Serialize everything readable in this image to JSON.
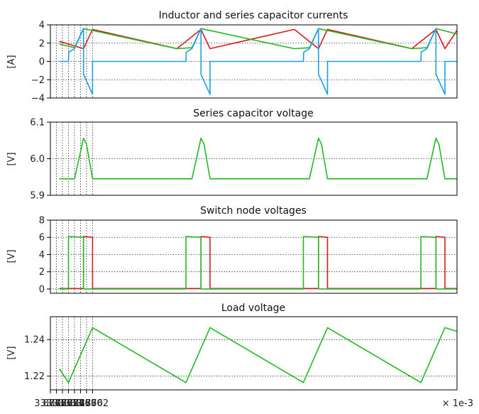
{
  "chart_data": [
    {
      "type": "line",
      "title": "Inductor and series capacitor currents",
      "ylabel": "[A]",
      "ylim": [
        -4,
        4
      ],
      "yticks": [
        -4,
        -2,
        0,
        2,
        4
      ],
      "ytick_labels": [
        "−4",
        "−2",
        "0",
        "2",
        "4"
      ],
      "grid": true,
      "series": [
        {
          "color": "#dd1a1a",
          "x": [
            0.0003,
            0.0011,
            0.0014,
            0.0042,
            0.005,
            0.0053,
            0.0081,
            0.0089,
            0.0092,
            0.012,
            0.0128,
            0.0131,
            0.0135
          ],
          "y": [
            2.2,
            1.4,
            3.5,
            1.4,
            3.5,
            1.4,
            3.5,
            1.4,
            3.5,
            1.4,
            3.5,
            1.4,
            3.4
          ]
        },
        {
          "color": "#22b922",
          "x": [
            0.0003,
            0.0008,
            0.0011,
            0.0039,
            0.0042,
            0.0047,
            0.005,
            0.0078,
            0.0081,
            0.0086,
            0.0089,
            0.0117,
            0.012,
            0.0125,
            0.0128,
            0.0135
          ],
          "y": [
            1.9,
            1.5,
            3.6,
            1.6,
            1.4,
            1.5,
            3.6,
            1.6,
            1.4,
            1.5,
            3.6,
            1.6,
            1.4,
            1.5,
            3.6,
            3.0
          ]
        },
        {
          "color": "#1aa0e6",
          "x": [
            0.0003,
            0.0006,
            0.00061,
            0.0008,
            0.0011,
            0.0011,
            0.0014,
            0.0014,
            0.0045,
            0.00451,
            0.0047,
            0.005,
            0.005,
            0.0053,
            0.0053,
            0.0084,
            0.00841,
            0.0086,
            0.0089,
            0.0089,
            0.0092,
            0.0092,
            0.0123,
            0.01231,
            0.0125,
            0.0128,
            0.0128,
            0.0131,
            0.0131,
            0.0135
          ],
          "y": [
            0.0,
            0.0,
            1.0,
            1.4,
            3.6,
            -1.4,
            -3.6,
            0.0,
            0.0,
            1.0,
            1.4,
            3.6,
            -1.4,
            -3.6,
            0.0,
            0.0,
            1.0,
            1.4,
            3.6,
            -1.4,
            -3.6,
            0.0,
            0.0,
            1.0,
            1.4,
            3.6,
            -1.4,
            -3.6,
            0.0,
            0.0
          ]
        }
      ]
    },
    {
      "type": "line",
      "title": "Series capacitor voltage",
      "ylabel": "[V]",
      "ylim": [
        5.9,
        6.1
      ],
      "yticks": [
        5.9,
        6.0,
        6.1
      ],
      "ytick_labels": [
        "5.9",
        "6.0",
        "6.1"
      ],
      "grid": true,
      "series": [
        {
          "color": "#22b922",
          "x": [
            0.0003,
            0.0008,
            0.0011,
            0.0012,
            0.0014,
            0.0047,
            0.005,
            0.0051,
            0.0053,
            0.0086,
            0.0089,
            0.009,
            0.0092,
            0.0125,
            0.0128,
            0.0129,
            0.0131,
            0.0135
          ],
          "y": [
            5.945,
            5.945,
            6.056,
            6.04,
            5.945,
            5.945,
            6.056,
            6.04,
            5.945,
            5.945,
            6.056,
            6.04,
            5.945,
            5.945,
            6.056,
            6.04,
            5.945,
            5.945
          ]
        }
      ]
    },
    {
      "type": "line",
      "title": "Switch node voltages",
      "ylabel": "[V]",
      "ylim": [
        -0.5,
        8
      ],
      "yticks": [
        0,
        2,
        4,
        6,
        8
      ],
      "ytick_labels": [
        "0",
        "2",
        "4",
        "6",
        "8"
      ],
      "grid": true,
      "series": [
        {
          "color": "#dd1a1a",
          "x": [
            0.0003,
            0.0011,
            0.0011,
            0.0014,
            0.0014,
            0.005,
            0.005,
            0.0053,
            0.0053,
            0.0089,
            0.0089,
            0.0092,
            0.0092,
            0.0128,
            0.0128,
            0.0131,
            0.0131,
            0.0135
          ],
          "y": [
            0.05,
            0.05,
            6.1,
            6.0,
            0.05,
            0.05,
            6.1,
            6.0,
            0.05,
            0.05,
            6.1,
            6.0,
            0.05,
            0.05,
            6.1,
            6.0,
            0.05,
            0.05
          ]
        },
        {
          "color": "#22b922",
          "x": [
            0.0003,
            0.0006,
            0.0006,
            0.0011,
            0.0011,
            0.0045,
            0.0045,
            0.005,
            0.005,
            0.0084,
            0.0084,
            0.0089,
            0.0089,
            0.0123,
            0.0123,
            0.0128,
            0.0128,
            0.0135
          ],
          "y": [
            0.0,
            0.0,
            6.1,
            6.0,
            0.0,
            0.0,
            6.1,
            6.0,
            0.0,
            0.0,
            6.1,
            6.0,
            0.0,
            0.0,
            6.1,
            6.0,
            0.0,
            0.0
          ]
        }
      ]
    },
    {
      "type": "line",
      "title": "Load voltage",
      "ylabel": "[V]",
      "ylim": [
        1.2125,
        1.2525
      ],
      "yticks": [
        1.22,
        1.24
      ],
      "ytick_labels": [
        "1.22",
        "1.24"
      ],
      "xlabel": "",
      "x_offset": 3.8748,
      "x_scale_label": "× 1e-3",
      "xticks": [
        0.0,
        0.0002,
        0.0004,
        0.0006,
        0.0008,
        0.001,
        0.0012,
        0.0014
      ],
      "xtick_labels": [
        "3.8748",
        "3.8750",
        "3.8752",
        "3.8754",
        "3.8756",
        "3.8758",
        "3.8760",
        "3.8762"
      ],
      "grid": true,
      "series": [
        {
          "color": "#22b922",
          "x": [
            0.0003,
            0.0006,
            0.0014,
            0.0045,
            0.0053,
            0.0084,
            0.0092,
            0.0123,
            0.0131,
            0.0135
          ],
          "y": [
            1.224,
            1.2165,
            1.2465,
            1.2165,
            1.2465,
            1.2165,
            1.2465,
            1.2165,
            1.2465,
            1.2445
          ]
        }
      ]
    }
  ]
}
